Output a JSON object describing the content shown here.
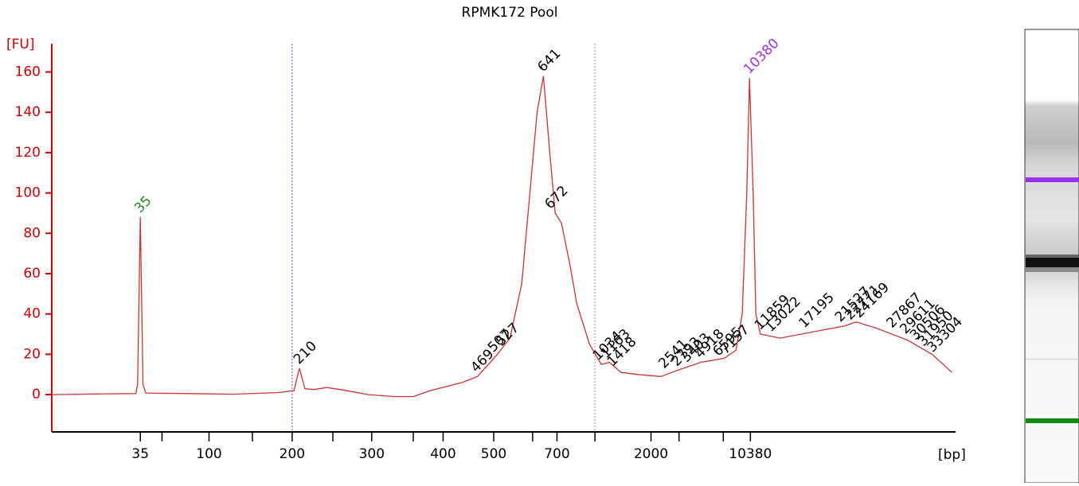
{
  "chart_data": {
    "type": "line",
    "title": "RPMK172 Pool",
    "ylabel": "[FU]",
    "xlabel": "[bp]",
    "axis_color": "#cc0000",
    "ylim": [
      -18.5,
      174
    ],
    "yticks": [
      0,
      20,
      40,
      60,
      80,
      100,
      120,
      140,
      160
    ],
    "xlim": [
      20,
      120
    ],
    "xticks": [
      {
        "value": 29.8,
        "label": "35"
      },
      {
        "value": 32.2,
        "label": null
      },
      {
        "value": 37.4,
        "label": "100"
      },
      {
        "value": 42.2,
        "label": null
      },
      {
        "value": 46.6,
        "label": "200"
      },
      {
        "value": 51.1,
        "label": null
      },
      {
        "value": 55.4,
        "label": "300"
      },
      {
        "value": 60.0,
        "label": null
      },
      {
        "value": 63.3,
        "label": "400"
      },
      {
        "value": 68.9,
        "label": "500"
      },
      {
        "value": 73.2,
        "label": null
      },
      {
        "value": 75.9,
        "label": "700"
      },
      {
        "value": 80.1,
        "label": null
      },
      {
        "value": 86.3,
        "label": "2000"
      },
      {
        "value": 89.4,
        "label": null
      },
      {
        "value": 94.3,
        "label": null
      },
      {
        "value": 97.3,
        "label": "10380"
      }
    ],
    "markers": [
      {
        "x": 46.6,
        "color": "#5555cc"
      },
      {
        "x": 80.1,
        "color": "#999999"
      }
    ],
    "x": [
      20,
      25,
      29.3,
      29.5,
      29.8,
      30.1,
      30.4,
      35,
      40,
      45,
      46.8,
      47.4,
      48.0,
      49,
      50.4,
      52,
      55,
      58,
      60,
      61.9,
      65.4,
      67.1,
      69.3,
      70.7,
      72.0,
      73.1,
      73.7,
      74.4,
      75.1,
      75.7,
      76.4,
      77.3,
      78.1,
      79.5,
      80.8,
      81.7,
      83.0,
      84.8,
      87.4,
      89.2,
      91.8,
      94.4,
      95.7,
      96.4,
      96.9,
      97.2,
      97.6,
      97.9,
      98.4,
      100.6,
      104.1,
      107.7,
      109.0,
      111.2,
      114.7,
      117.4,
      119.6
    ],
    "series": [
      {
        "color": "#cc3333",
        "values": [
          0,
          0.3,
          0.5,
          5,
          88,
          5,
          0.8,
          0.5,
          0.2,
          1,
          2,
          13,
          3,
          2.5,
          3.5,
          2.5,
          0,
          -1,
          -1,
          2,
          6,
          9,
          20,
          28,
          55,
          110,
          140,
          158,
          120,
          90,
          85,
          65,
          45,
          25,
          15,
          16,
          11,
          10,
          9,
          12,
          16,
          18,
          22,
          40,
          100,
          157,
          100,
          40,
          30,
          28,
          31,
          34,
          36,
          33,
          27,
          20,
          11
        ]
      }
    ],
    "annotations": [
      {
        "text": "35",
        "x": 29.8,
        "y": 88,
        "color": "#228822"
      },
      {
        "text": "210",
        "x": 47.4,
        "y": 13,
        "color": "#000000"
      },
      {
        "text": "469",
        "x": 67.0,
        "y": 9,
        "color": "#000000"
      },
      {
        "text": "507",
        "x": 68.9,
        "y": 19,
        "color": "#000000"
      },
      {
        "text": "527",
        "x": 69.8,
        "y": 22,
        "color": "#000000"
      },
      {
        "text": "641",
        "x": 74.4,
        "y": 158,
        "color": "#000000"
      },
      {
        "text": "672",
        "x": 75.2,
        "y": 90,
        "color": "#000000"
      },
      {
        "text": "1034",
        "x": 80.5,
        "y": 15,
        "color": "#000000"
      },
      {
        "text": "1163",
        "x": 81.4,
        "y": 16,
        "color": "#000000"
      },
      {
        "text": "1418",
        "x": 82.1,
        "y": 12,
        "color": "#000000"
      },
      {
        "text": "2541",
        "x": 87.8,
        "y": 11,
        "color": "#000000"
      },
      {
        "text": "2793",
        "x": 89.2,
        "y": 12,
        "color": "#000000"
      },
      {
        "text": "3403",
        "x": 90.3,
        "y": 14,
        "color": "#000000"
      },
      {
        "text": "4918",
        "x": 91.8,
        "y": 16,
        "color": "#000000"
      },
      {
        "text": "6595",
        "x": 93.8,
        "y": 17,
        "color": "#000000"
      },
      {
        "text": "7157",
        "x": 94.6,
        "y": 18,
        "color": "#000000"
      },
      {
        "text": "10380",
        "x": 97.2,
        "y": 157,
        "color": "#9933ee"
      },
      {
        "text": "11859",
        "x": 98.4,
        "y": 30,
        "color": "#000000"
      },
      {
        "text": "13022",
        "x": 99.6,
        "y": 29,
        "color": "#000000"
      },
      {
        "text": "17195",
        "x": 103.3,
        "y": 31,
        "color": "#000000"
      },
      {
        "text": "21527",
        "x": 107.3,
        "y": 34,
        "color": "#000000"
      },
      {
        "text": "22771",
        "x": 108.4,
        "y": 35,
        "color": "#000000"
      },
      {
        "text": "24169",
        "x": 109.4,
        "y": 36,
        "color": "#000000"
      },
      {
        "text": "27867",
        "x": 113.0,
        "y": 31,
        "color": "#000000"
      },
      {
        "text": "29611",
        "x": 114.5,
        "y": 28,
        "color": "#000000"
      },
      {
        "text": "30506",
        "x": 115.6,
        "y": 25,
        "color": "#000000"
      },
      {
        "text": "31950",
        "x": 116.5,
        "y": 22,
        "color": "#000000"
      },
      {
        "text": "33304",
        "x": 117.5,
        "y": 19,
        "color": "#000000"
      }
    ]
  }
}
